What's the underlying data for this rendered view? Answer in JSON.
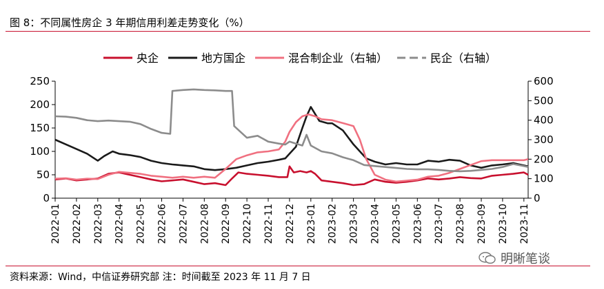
{
  "header": {
    "title": "图 8：不同属性房企 3 年期信用利差走势变化（%）"
  },
  "footer": {
    "source": "资料来源：Wind，中信证券研究部 注：时间截至 2023 年 11 月 7 日"
  },
  "watermark": {
    "text": "明晰笔谈",
    "icon": "wechat-icon"
  },
  "chart_data": {
    "type": "line",
    "title": "",
    "x_ticks": [
      "2022-01",
      "2022-02",
      "2022-03",
      "2022-04",
      "2022-05",
      "2022-06",
      "2022-07",
      "2022-08",
      "2022-09",
      "2022-10",
      "2022-11",
      "2022-12",
      "2023-01",
      "2023-02",
      "2023-03",
      "2023-04",
      "2023-05",
      "2023-06",
      "2023-07",
      "2023-08",
      "2023-09",
      "2023-10",
      "2023-11"
    ],
    "x_range": [
      0,
      22.2
    ],
    "y_left": {
      "range": [
        0,
        250
      ],
      "ticks": [
        0,
        50,
        100,
        150,
        200,
        250
      ]
    },
    "y_right": {
      "range": [
        0,
        600
      ],
      "ticks": [
        0,
        100,
        200,
        300,
        400,
        500,
        600
      ]
    },
    "grid": false,
    "legend_position": "top",
    "series": [
      {
        "name": "央企",
        "axis": "left",
        "color": "#c8102e",
        "style": "solid",
        "points": [
          [
            0,
            40
          ],
          [
            0.5,
            42
          ],
          [
            1,
            38
          ],
          [
            1.5,
            40
          ],
          [
            2,
            42
          ],
          [
            2.5,
            52
          ],
          [
            3,
            55
          ],
          [
            3.5,
            50
          ],
          [
            4,
            45
          ],
          [
            4.5,
            40
          ],
          [
            5,
            36
          ],
          [
            5.5,
            38
          ],
          [
            6,
            40
          ],
          [
            6.5,
            35
          ],
          [
            7,
            30
          ],
          [
            7.5,
            32
          ],
          [
            8,
            28
          ],
          [
            8.3,
            42
          ],
          [
            8.6,
            55
          ],
          [
            9,
            52
          ],
          [
            9.5,
            50
          ],
          [
            10,
            48
          ],
          [
            10.5,
            45
          ],
          [
            10.9,
            45
          ],
          [
            11,
            68
          ],
          [
            11.2,
            55
          ],
          [
            11.5,
            58
          ],
          [
            11.8,
            55
          ],
          [
            12,
            58
          ],
          [
            12.2,
            52
          ],
          [
            12.5,
            38
          ],
          [
            13,
            35
          ],
          [
            13.5,
            32
          ],
          [
            14,
            28
          ],
          [
            14.5,
            30
          ],
          [
            15,
            40
          ],
          [
            15.5,
            35
          ],
          [
            16,
            33
          ],
          [
            16.5,
            35
          ],
          [
            17,
            38
          ],
          [
            17.5,
            42
          ],
          [
            18,
            40
          ],
          [
            18.5,
            42
          ],
          [
            19,
            45
          ],
          [
            19.5,
            43
          ],
          [
            20,
            42
          ],
          [
            20.5,
            48
          ],
          [
            21,
            50
          ],
          [
            21.5,
            52
          ],
          [
            22,
            55
          ],
          [
            22.2,
            50
          ]
        ]
      },
      {
        "name": "地方国企",
        "axis": "left",
        "color": "#1a1a1a",
        "style": "solid",
        "points": [
          [
            0,
            125
          ],
          [
            0.5,
            115
          ],
          [
            1,
            105
          ],
          [
            1.5,
            95
          ],
          [
            2,
            80
          ],
          [
            2.3,
            90
          ],
          [
            2.7,
            100
          ],
          [
            3,
            95
          ],
          [
            3.5,
            92
          ],
          [
            4,
            88
          ],
          [
            4.5,
            80
          ],
          [
            5,
            75
          ],
          [
            5.5,
            72
          ],
          [
            6,
            70
          ],
          [
            6.5,
            68
          ],
          [
            7,
            62
          ],
          [
            7.5,
            60
          ],
          [
            8,
            62
          ],
          [
            8.5,
            65
          ],
          [
            9,
            70
          ],
          [
            9.5,
            75
          ],
          [
            10,
            78
          ],
          [
            10.5,
            82
          ],
          [
            10.8,
            85
          ],
          [
            11,
            95
          ],
          [
            11.3,
            110
          ],
          [
            11.6,
            150
          ],
          [
            11.8,
            175
          ],
          [
            12,
            195
          ],
          [
            12.2,
            180
          ],
          [
            12.4,
            165
          ],
          [
            12.8,
            160
          ],
          [
            13,
            160
          ],
          [
            13.5,
            145
          ],
          [
            14,
            115
          ],
          [
            14.3,
            100
          ],
          [
            14.6,
            85
          ],
          [
            15,
            78
          ],
          [
            15.5,
            72
          ],
          [
            16,
            75
          ],
          [
            16.5,
            72
          ],
          [
            17,
            72
          ],
          [
            17.5,
            80
          ],
          [
            18,
            78
          ],
          [
            18.5,
            82
          ],
          [
            19,
            80
          ],
          [
            19.5,
            70
          ],
          [
            20,
            65
          ],
          [
            20.5,
            70
          ],
          [
            21,
            72
          ],
          [
            21.5,
            75
          ],
          [
            22,
            70
          ],
          [
            22.2,
            68
          ]
        ]
      },
      {
        "name": "混合制企业（右轴）",
        "axis": "right",
        "color": "#f07080",
        "style": "solid",
        "points": [
          [
            0,
            100
          ],
          [
            0.5,
            102
          ],
          [
            1,
            95
          ],
          [
            1.5,
            100
          ],
          [
            2,
            98
          ],
          [
            2.5,
            120
          ],
          [
            3,
            135
          ],
          [
            3.5,
            130
          ],
          [
            4,
            125
          ],
          [
            4.5,
            115
          ],
          [
            5,
            110
          ],
          [
            5.5,
            105
          ],
          [
            6,
            110
          ],
          [
            6.5,
            105
          ],
          [
            7,
            110
          ],
          [
            7.5,
            105
          ],
          [
            8,
            150
          ],
          [
            8.5,
            200
          ],
          [
            9,
            220
          ],
          [
            9.5,
            235
          ],
          [
            10,
            240
          ],
          [
            10.5,
            250
          ],
          [
            10.8,
            290
          ],
          [
            11,
            340
          ],
          [
            11.3,
            390
          ],
          [
            11.6,
            420
          ],
          [
            11.9,
            430
          ],
          [
            12.2,
            420
          ],
          [
            12.5,
            405
          ],
          [
            13,
            400
          ],
          [
            13.5,
            385
          ],
          [
            14,
            370
          ],
          [
            14.3,
            300
          ],
          [
            14.6,
            200
          ],
          [
            15,
            120
          ],
          [
            15.5,
            95
          ],
          [
            16,
            85
          ],
          [
            16.5,
            90
          ],
          [
            17,
            95
          ],
          [
            17.5,
            110
          ],
          [
            18,
            115
          ],
          [
            18.5,
            130
          ],
          [
            19,
            150
          ],
          [
            19.5,
            170
          ],
          [
            20,
            190
          ],
          [
            20.5,
            195
          ],
          [
            21,
            195
          ],
          [
            21.5,
            195
          ],
          [
            22,
            195
          ],
          [
            22.2,
            200
          ]
        ]
      },
      {
        "name": "民企（右轴）",
        "axis": "right",
        "color": "#8c8c8c",
        "style": "dashed",
        "points": [
          [
            0,
            420
          ],
          [
            0.5,
            418
          ],
          [
            1,
            412
          ],
          [
            1.5,
            400
          ],
          [
            2,
            395
          ],
          [
            2.5,
            398
          ],
          [
            3,
            395
          ],
          [
            3.5,
            392
          ],
          [
            4,
            380
          ],
          [
            4.5,
            355
          ],
          [
            5,
            335
          ],
          [
            5.4,
            330
          ],
          [
            5.5,
            550
          ],
          [
            6,
            555
          ],
          [
            6.5,
            558
          ],
          [
            7,
            555
          ],
          [
            7.5,
            553
          ],
          [
            8,
            550
          ],
          [
            8.3,
            550
          ],
          [
            8.4,
            370
          ],
          [
            8.6,
            350
          ],
          [
            9,
            310
          ],
          [
            9.5,
            320
          ],
          [
            10,
            290
          ],
          [
            10.5,
            280
          ],
          [
            10.8,
            275
          ],
          [
            11,
            290
          ],
          [
            11.3,
            280
          ],
          [
            11.6,
            270
          ],
          [
            11.8,
            325
          ],
          [
            12,
            270
          ],
          [
            12.5,
            240
          ],
          [
            13,
            230
          ],
          [
            13.5,
            210
          ],
          [
            14,
            195
          ],
          [
            14.5,
            170
          ],
          [
            15,
            165
          ],
          [
            15.5,
            160
          ],
          [
            16,
            155
          ],
          [
            16.5,
            150
          ],
          [
            17,
            148
          ],
          [
            17.5,
            148
          ],
          [
            18,
            145
          ],
          [
            18.5,
            140
          ],
          [
            19,
            138
          ],
          [
            19.5,
            140
          ],
          [
            20,
            145
          ],
          [
            20.5,
            150
          ],
          [
            21,
            160
          ],
          [
            21.5,
            175
          ],
          [
            22,
            165
          ],
          [
            22.2,
            160
          ]
        ]
      }
    ]
  }
}
